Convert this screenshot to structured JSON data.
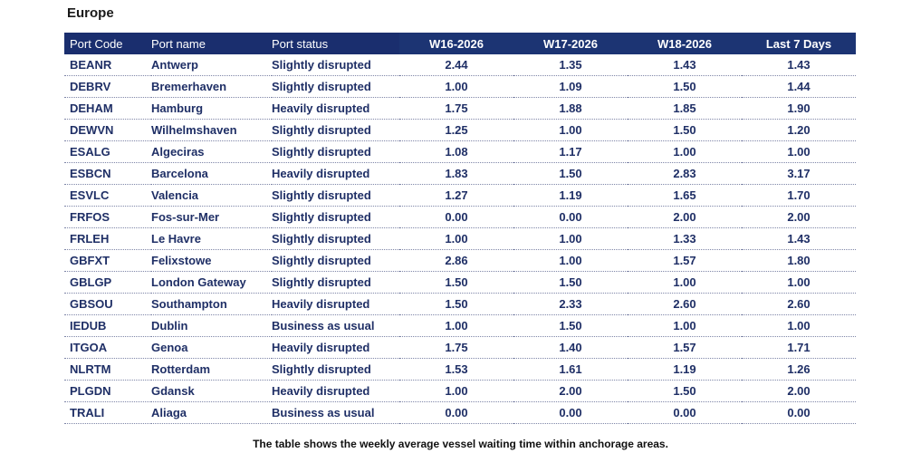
{
  "region_title": "Europe",
  "table": {
    "headers": [
      "Port Code",
      "Port name",
      "Port status",
      "W16-2026",
      "W17-2026",
      "W18-2026",
      "Last 7 Days"
    ],
    "rows": [
      [
        "BEANR",
        "Antwerp",
        "Slightly disrupted",
        "2.44",
        "1.35",
        "1.43",
        "1.43"
      ],
      [
        "DEBRV",
        "Bremerhaven",
        "Slightly disrupted",
        "1.00",
        "1.09",
        "1.50",
        "1.44"
      ],
      [
        "DEHAM",
        "Hamburg",
        "Heavily disrupted",
        "1.75",
        "1.88",
        "1.85",
        "1.90"
      ],
      [
        "DEWVN",
        "Wilhelmshaven",
        "Slightly disrupted",
        "1.25",
        "1.00",
        "1.50",
        "1.20"
      ],
      [
        "ESALG",
        "Algeciras",
        "Slightly disrupted",
        "1.08",
        "1.17",
        "1.00",
        "1.00"
      ],
      [
        "ESBCN",
        "Barcelona",
        "Heavily disrupted",
        "1.83",
        "1.50",
        "2.83",
        "3.17"
      ],
      [
        "ESVLC",
        "Valencia",
        "Slightly disrupted",
        "1.27",
        "1.19",
        "1.65",
        "1.70"
      ],
      [
        "FRFOS",
        "Fos-sur-Mer",
        "Slightly disrupted",
        "0.00",
        "0.00",
        "2.00",
        "2.00"
      ],
      [
        "FRLEH",
        "Le Havre",
        "Slightly disrupted",
        "1.00",
        "1.00",
        "1.33",
        "1.43"
      ],
      [
        "GBFXT",
        "Felixstowe",
        "Slightly disrupted",
        "2.86",
        "1.00",
        "1.57",
        "1.80"
      ],
      [
        "GBLGP",
        "London Gateway",
        "Slightly disrupted",
        "1.50",
        "1.50",
        "1.00",
        "1.00"
      ],
      [
        "GBSOU",
        "Southampton",
        "Heavily disrupted",
        "1.50",
        "2.33",
        "2.60",
        "2.60"
      ],
      [
        "IEDUB",
        "Dublin",
        "Business as usual",
        "1.00",
        "1.50",
        "1.00",
        "1.00"
      ],
      [
        "ITGOA",
        "Genoa",
        "Heavily disrupted",
        "1.75",
        "1.40",
        "1.57",
        "1.71"
      ],
      [
        "NLRTM",
        "Rotterdam",
        "Slightly disrupted",
        "1.53",
        "1.61",
        "1.19",
        "1.26"
      ],
      [
        "PLGDN",
        "Gdansk",
        "Heavily disrupted",
        "1.00",
        "2.00",
        "1.50",
        "2.00"
      ],
      [
        "TRALI",
        "Aliaga",
        "Business as usual",
        "0.00",
        "0.00",
        "0.00",
        "0.00"
      ]
    ]
  },
  "caption": "The table shows the weekly average vessel waiting time within anchorage areas.",
  "colors": {
    "header_bg": "#1a2e6e",
    "cell_text": "#1f2f66"
  }
}
